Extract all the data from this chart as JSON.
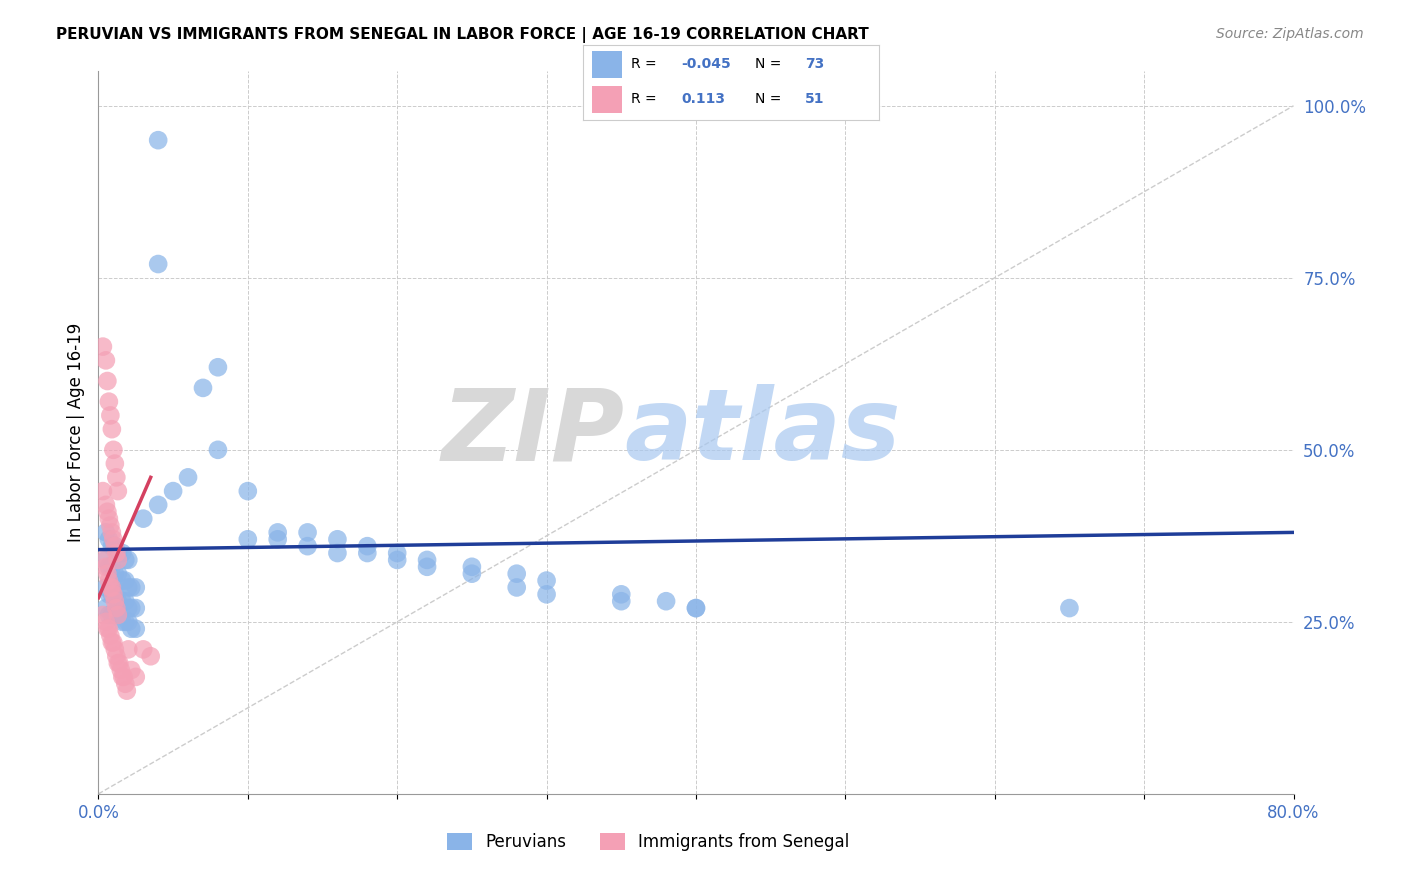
{
  "title": "PERUVIAN VS IMMIGRANTS FROM SENEGAL IN LABOR FORCE | AGE 16-19 CORRELATION CHART",
  "source": "Source: ZipAtlas.com",
  "ylabel": "In Labor Force | Age 16-19",
  "xlim": [
    0.0,
    0.8
  ],
  "ylim": [
    0.0,
    1.05
  ],
  "yticks_right": [
    0.25,
    0.5,
    0.75,
    1.0
  ],
  "ytick_labels_right": [
    "25.0%",
    "50.0%",
    "75.0%",
    "100.0%"
  ],
  "blue_color": "#8ab4e8",
  "pink_color": "#f4a0b5",
  "blue_line_color": "#1f3d99",
  "pink_line_color": "#d44060",
  "grid_color": "#cccccc",
  "R_blue": -0.045,
  "N_blue": 73,
  "R_pink": 0.113,
  "N_pink": 51,
  "legend_label_blue": "Peruvians",
  "legend_label_pink": "Immigrants from Senegal",
  "watermark_zip": "ZIP",
  "watermark_atlas": "atlas",
  "blue_scatter_x": [
    0.04,
    0.04,
    0.005,
    0.007,
    0.009,
    0.011,
    0.013,
    0.016,
    0.018,
    0.02,
    0.005,
    0.007,
    0.009,
    0.011,
    0.013,
    0.016,
    0.018,
    0.02,
    0.022,
    0.025,
    0.005,
    0.007,
    0.009,
    0.011,
    0.013,
    0.016,
    0.018,
    0.02,
    0.022,
    0.025,
    0.005,
    0.007,
    0.009,
    0.011,
    0.013,
    0.016,
    0.018,
    0.02,
    0.022,
    0.025,
    0.03,
    0.04,
    0.05,
    0.07,
    0.08,
    0.1,
    0.12,
    0.14,
    0.16,
    0.18,
    0.2,
    0.22,
    0.25,
    0.28,
    0.3,
    0.35,
    0.38,
    0.4,
    0.65,
    0.06,
    0.08,
    0.1,
    0.12,
    0.14,
    0.16,
    0.18,
    0.2,
    0.22,
    0.25,
    0.28,
    0.3,
    0.35,
    0.4
  ],
  "blue_scatter_y": [
    0.95,
    0.77,
    0.38,
    0.37,
    0.36,
    0.36,
    0.35,
    0.35,
    0.34,
    0.34,
    0.34,
    0.33,
    0.33,
    0.32,
    0.32,
    0.31,
    0.31,
    0.3,
    0.3,
    0.3,
    0.3,
    0.29,
    0.29,
    0.29,
    0.28,
    0.28,
    0.28,
    0.27,
    0.27,
    0.27,
    0.27,
    0.26,
    0.26,
    0.26,
    0.26,
    0.25,
    0.25,
    0.25,
    0.24,
    0.24,
    0.4,
    0.42,
    0.44,
    0.59,
    0.62,
    0.44,
    0.38,
    0.38,
    0.37,
    0.36,
    0.35,
    0.34,
    0.33,
    0.32,
    0.31,
    0.29,
    0.28,
    0.27,
    0.27,
    0.46,
    0.5,
    0.37,
    0.37,
    0.36,
    0.35,
    0.35,
    0.34,
    0.33,
    0.32,
    0.3,
    0.29,
    0.28,
    0.27
  ],
  "pink_scatter_x": [
    0.003,
    0.005,
    0.006,
    0.007,
    0.008,
    0.009,
    0.01,
    0.011,
    0.012,
    0.013,
    0.003,
    0.005,
    0.006,
    0.007,
    0.008,
    0.009,
    0.01,
    0.011,
    0.012,
    0.013,
    0.003,
    0.005,
    0.006,
    0.007,
    0.008,
    0.009,
    0.01,
    0.011,
    0.012,
    0.013,
    0.003,
    0.005,
    0.006,
    0.007,
    0.008,
    0.009,
    0.01,
    0.011,
    0.012,
    0.013,
    0.014,
    0.015,
    0.016,
    0.017,
    0.018,
    0.019,
    0.02,
    0.022,
    0.025,
    0.03,
    0.035
  ],
  "pink_scatter_y": [
    0.65,
    0.63,
    0.6,
    0.57,
    0.55,
    0.53,
    0.5,
    0.48,
    0.46,
    0.44,
    0.44,
    0.42,
    0.41,
    0.4,
    0.39,
    0.38,
    0.37,
    0.36,
    0.35,
    0.34,
    0.34,
    0.33,
    0.32,
    0.31,
    0.3,
    0.3,
    0.29,
    0.28,
    0.27,
    0.26,
    0.26,
    0.25,
    0.24,
    0.24,
    0.23,
    0.22,
    0.22,
    0.21,
    0.2,
    0.19,
    0.19,
    0.18,
    0.17,
    0.17,
    0.16,
    0.15,
    0.21,
    0.18,
    0.17,
    0.21,
    0.2
  ],
  "blue_line_x": [
    0.0,
    0.8
  ],
  "blue_line_y": [
    0.355,
    0.38
  ],
  "pink_line_x": [
    0.0,
    0.035
  ],
  "pink_line_y": [
    0.285,
    0.46
  ],
  "diag_line_x": [
    0.0,
    0.8
  ],
  "diag_line_y": [
    0.0,
    1.0
  ]
}
